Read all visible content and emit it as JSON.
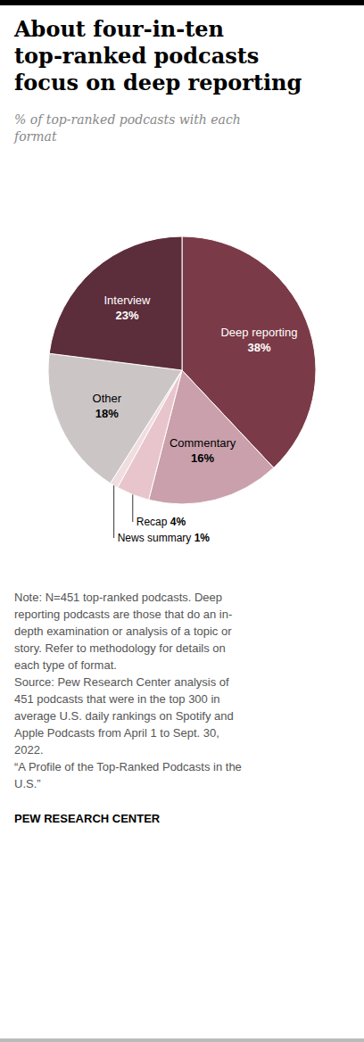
{
  "chart_data": {
    "type": "pie",
    "title": "About four-in-ten\ntop-ranked podcasts\nfocus on deep reporting",
    "subtitle": "% of top-ranked podcasts with each\nformat",
    "categories": [
      "Deep reporting",
      "Commentary",
      "Recap",
      "News summary",
      "Other",
      "Interview"
    ],
    "values": [
      38,
      16,
      4,
      1,
      18,
      23
    ],
    "value_labels": [
      "38%",
      "16%",
      "4%",
      "1%",
      "18%",
      "23%"
    ],
    "data_labels": true,
    "colors": [
      "#7b3a47",
      "#c9a0ac",
      "#e8c5cc",
      "#f0dde0",
      "#ccc5c6",
      "#5c2d3a"
    ],
    "note": [
      "Note: N=451 top-ranked podcasts. Deep",
      "reporting podcasts are those that do an in-",
      "depth examination or analysis of a topic or",
      "story. Refer to methodology for details on",
      "each type of format.",
      "Source: Pew Research Center analysis of",
      "451 podcasts that were in the top 300 in",
      "average U.S. daily rankings on Spotify and",
      "Apple Podcasts from April 1 to Sept. 30,",
      "2022.",
      "“A Profile of the Top-Ranked Podcasts in the",
      "U.S.”"
    ],
    "footer": "PEW RESEARCH CENTER"
  }
}
